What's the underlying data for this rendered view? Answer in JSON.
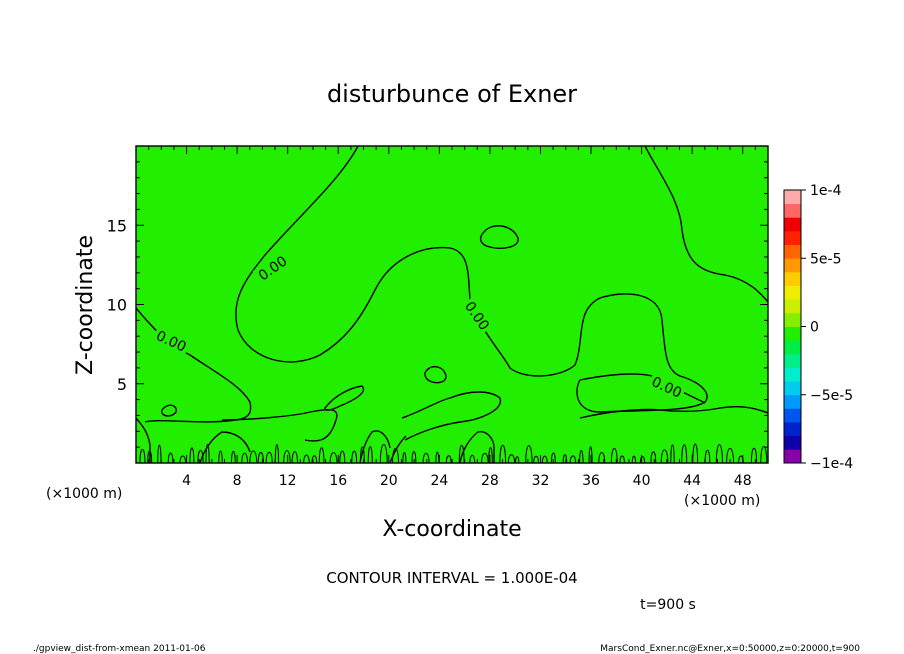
{
  "chart_data": {
    "type": "contour",
    "title": "disturbunce of Exner",
    "xlabel": "X-coordinate",
    "ylabel": "Z-coordinate",
    "x_unit": "(×1000 m)",
    "y_unit": "(×1000 m)",
    "xlim": [
      0,
      50
    ],
    "ylim": [
      0,
      20
    ],
    "x_ticks": [
      4,
      8,
      12,
      16,
      20,
      24,
      28,
      32,
      36,
      40,
      44,
      48
    ],
    "y_ticks": [
      5,
      10,
      15
    ],
    "fill_color": "#22ee00",
    "colorbar": {
      "range": [
        -0.0001,
        0.0001
      ],
      "tick_labels": [
        {
          "value": 0.0001,
          "label": "1e-4"
        },
        {
          "value": 5e-05,
          "label": "5e-5"
        },
        {
          "value": 0,
          "label": "0"
        },
        {
          "value": -5e-05,
          "label": "−5e-5"
        },
        {
          "value": -0.0001,
          "label": "−1e-4"
        }
      ],
      "colors": [
        "#8800aa",
        "#1100aa",
        "#0022cc",
        "#0055ee",
        "#0099ff",
        "#00ccee",
        "#00eecc",
        "#00ee88",
        "#00ee44",
        "#22ee00",
        "#88ee00",
        "#ccee00",
        "#eeee00",
        "#ffcc00",
        "#ff9900",
        "#ff6600",
        "#ff2200",
        "#ee0000",
        "#ff6666",
        "#ffaaaa"
      ]
    },
    "contour_labels": [
      {
        "text": "0.00",
        "x": 10.8,
        "y": 12.3
      },
      {
        "text": "0.00",
        "x": 2.8,
        "y": 7.7
      },
      {
        "text": "0.00",
        "x": 27.0,
        "y": 9.3
      },
      {
        "text": "0.00",
        "x": 42.0,
        "y": 4.8
      }
    ],
    "contour_interval": "CONTOUR INTERVAL = 1.000E-04",
    "time_label": "t=900 s"
  },
  "footer": {
    "left": "./gpview_dist-from-xmean  2011-01-06",
    "right": "MarsCond_Exner.nc@Exner,x=0:50000,z=0:20000,t=900"
  }
}
